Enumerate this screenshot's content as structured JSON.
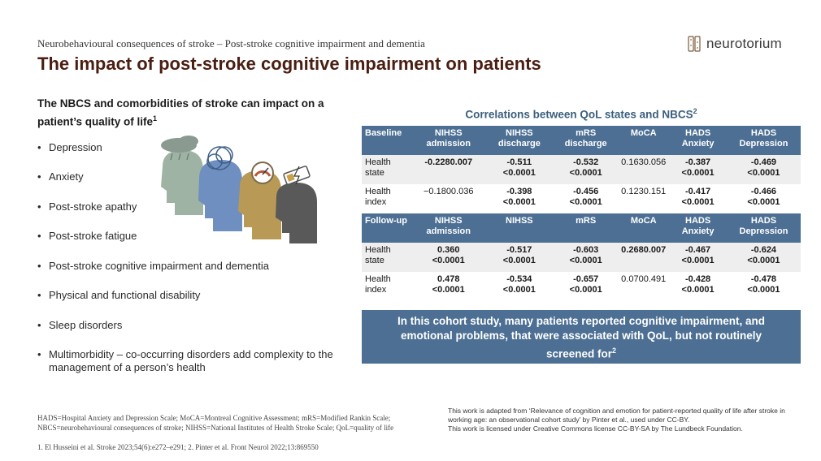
{
  "header": {
    "subtitle": "Neurobehavioural  consequences of stroke – Post-stroke cognitive impairment  and dementia",
    "title": "The impact of post-stroke cognitive impairment on patients",
    "logo_text": "neurotorium"
  },
  "left": {
    "heading": "The NBCS and comorbidities of stroke can impact on a patient’s quality of life",
    "heading_sup": "1",
    "bullets": [
      "Depression",
      "Anxiety",
      "Post-stroke apathy",
      "Post-stroke fatigue",
      "Post-stroke cognitive impairment and dementia",
      "Physical and functional disability",
      "Sleep disorders",
      "Multimorbidity – co-occurring disorders add complexity to the management of a person’s health"
    ]
  },
  "table": {
    "title": "Correlations between QoL states and NBCS",
    "title_sup": "2",
    "baseline_headers": [
      "Baseline",
      "NIHSS admission",
      "NIHSS discharge",
      "mRS discharge",
      "MoCA",
      "HADS Anxiety",
      "HADS Depression"
    ],
    "baseline_rows": [
      {
        "label": "Health state",
        "cells": [
          {
            "v": "-0.2280.007",
            "b": true
          },
          {
            "v": "-0.511",
            "p": "<0.0001",
            "b": true
          },
          {
            "v": "-0.532",
            "p": "<0.0001",
            "b": true
          },
          {
            "v": "0.1630.056",
            "b": false
          },
          {
            "v": "-0.387",
            "p": "<0.0001",
            "b": true
          },
          {
            "v": "-0.469",
            "p": "<0.0001",
            "b": true
          }
        ]
      },
      {
        "label": "Health index",
        "cells": [
          {
            "v": "−0.1800.036",
            "b": false
          },
          {
            "v": "-0.398",
            "p": "<0.0001",
            "b": true
          },
          {
            "v": "-0.456",
            "p": "<0.0001",
            "b": true
          },
          {
            "v": "0.1230.151",
            "b": false
          },
          {
            "v": "-0.417",
            "p": "<0.0001",
            "b": true
          },
          {
            "v": "-0.466",
            "p": "<0.0001",
            "b": true
          }
        ]
      }
    ],
    "followup_headers": [
      "Follow-up",
      "NIHSS admission",
      "NIHSS",
      "mRS",
      "MoCA",
      "HADS Anxiety",
      "HADS Depression"
    ],
    "followup_rows": [
      {
        "label": "Health state",
        "cells": [
          {
            "v": "0.360",
            "p": "<0.0001",
            "b": true
          },
          {
            "v": "-0.517",
            "p": "<0.0001",
            "b": true
          },
          {
            "v": "-0.603",
            "p": "<0.0001",
            "b": true
          },
          {
            "v": "0.2680.007",
            "b": true
          },
          {
            "v": "-0.467",
            "p": "<0.0001",
            "b": true
          },
          {
            "v": "-0.624",
            "p": "<0.0001",
            "b": true
          }
        ]
      },
      {
        "label": "Health index",
        "cells": [
          {
            "v": "0.478",
            "p": "<0.0001",
            "b": true
          },
          {
            "v": "-0.534",
            "p": "<0.0001",
            "b": true
          },
          {
            "v": "-0.657",
            "p": "<0.0001",
            "b": true
          },
          {
            "v": "0.0700.491",
            "b": false
          },
          {
            "v": "-0.428",
            "p": "<0.0001",
            "b": true
          },
          {
            "v": "-0.478",
            "p": "<0.0001",
            "b": true
          }
        ]
      }
    ]
  },
  "callout": {
    "text": "In this cohort study, many patients reported cognitive impairment, and emotional problems, that were associated with QoL, but not routinely screened for",
    "sup": "2"
  },
  "footer": {
    "abbr_line1": "HADS=Hospital Anxiety and Depression Scale; MoCA=Montreal Cognitive Assessment; mRS=Modified Rankin Scale;",
    "abbr_line2": "NBCS=neurobehavioural consequences of stroke; NIHSS=National Institutes of Health Stroke Scale; QoL=quality of life",
    "refs": "1. El Husseini et al. Stroke 2023;54(6):e272–e291;  2. Pinter et al. Front Neurol 2022;13:869550",
    "credit_line1": "This work is adapted from ‘Relevance of cognition and emotion for patient-reported quality of life after stroke in working age: an observational cohort study’ by Pinter et al., used under CC-BY.",
    "credit_line2": "This work is licensed under Creative Commons license CC-BY-SA by The Lundbeck Foundation."
  },
  "colors": {
    "title": "#4a1e12",
    "table_header": "#4c6f93",
    "table_title": "#3b5f7e",
    "row_shade": "#eeeeee",
    "head_green": "#9fb3a4",
    "head_blue": "#6e8fbf",
    "head_gold": "#b89a56",
    "head_grey": "#595959"
  }
}
